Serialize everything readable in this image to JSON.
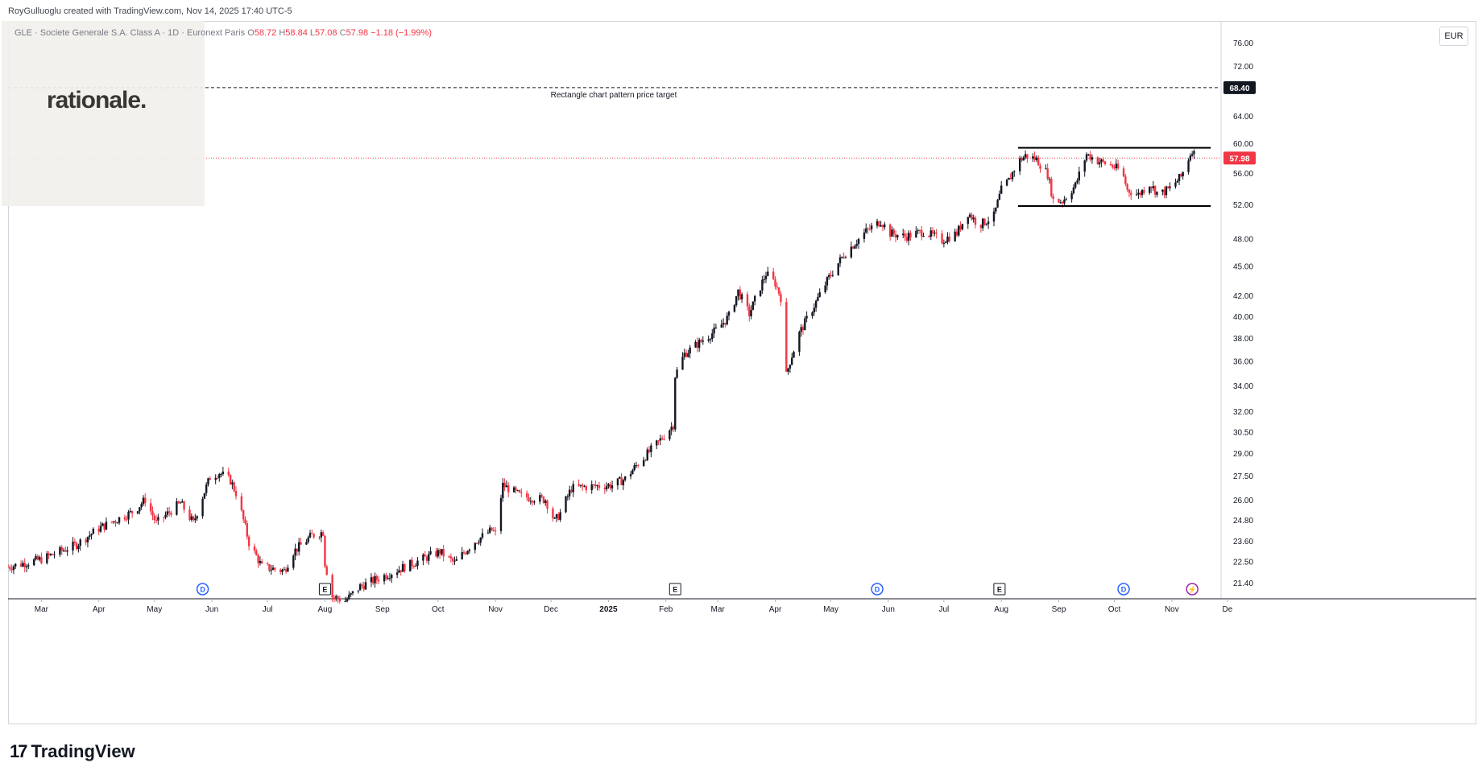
{
  "header": {
    "text": "RoyGulluoglu created with TradingView.com, Nov 14, 2025 17:40 UTC-5"
  },
  "logo": {
    "text": "rationale."
  },
  "symbol": {
    "description": "GLE · Societe Generale S.A. Class A · 1D · Euronext Paris",
    "o_label": "O",
    "o_value": "58.72",
    "h_label": "H",
    "h_value": "58.84",
    "l_label": "L",
    "l_value": "57.08",
    "c_label": "C",
    "c_value": "57.98",
    "change": "−1.18 (−1.99%)"
  },
  "currency": "EUR",
  "footer": {
    "brand_mark": "17",
    "brand_name": "TradingView"
  },
  "colors": {
    "up": "#131722",
    "down": "#f23645",
    "price_badge": "#f23645",
    "target_badge": "#131722"
  },
  "chart_data": {
    "type": "candlestick",
    "price_axis_ticks": [
      "76.00",
      "72.00",
      "64.00",
      "60.00",
      "56.00",
      "52.00",
      "48.00",
      "45.00",
      "42.00",
      "40.00",
      "38.00",
      "36.00",
      "34.00",
      "32.00",
      "30.50",
      "29.00",
      "27.50",
      "26.00",
      "24.80",
      "23.60",
      "22.50",
      "21.40"
    ],
    "scale": "log",
    "ylim": [
      20.6,
      80.0
    ],
    "time_axis_ticks": [
      {
        "label": "Mar",
        "date": "2024-03-01"
      },
      {
        "label": "Apr",
        "date": "2024-04-01"
      },
      {
        "label": "May",
        "date": "2024-05-01"
      },
      {
        "label": "Jun",
        "date": "2024-06-01"
      },
      {
        "label": "Jul",
        "date": "2024-07-01"
      },
      {
        "label": "Aug",
        "date": "2024-08-01"
      },
      {
        "label": "Sep",
        "date": "2024-09-01"
      },
      {
        "label": "Oct",
        "date": "2024-10-01"
      },
      {
        "label": "Nov",
        "date": "2024-11-01"
      },
      {
        "label": "Dec",
        "date": "2024-12-01"
      },
      {
        "label": "2025",
        "date": "2025-01-01"
      },
      {
        "label": "Feb",
        "date": "2025-02-01"
      },
      {
        "label": "Mar",
        "date": "2025-03-01"
      },
      {
        "label": "Apr",
        "date": "2025-04-01"
      },
      {
        "label": "May",
        "date": "2025-05-01"
      },
      {
        "label": "Jun",
        "date": "2025-06-01"
      },
      {
        "label": "Jul",
        "date": "2025-07-01"
      },
      {
        "label": "Aug",
        "date": "2025-08-01"
      },
      {
        "label": "Sep",
        "date": "2025-09-01"
      },
      {
        "label": "Oct",
        "date": "2025-10-01"
      },
      {
        "label": "Nov",
        "date": "2025-11-01"
      },
      {
        "label": "De",
        "date": "2025-12-01"
      }
    ],
    "close_path": [
      [
        "2024-02-12",
        22.2
      ],
      [
        "2024-03-01",
        22.6
      ],
      [
        "2024-03-20",
        23.4
      ],
      [
        "2024-04-01",
        24.3
      ],
      [
        "2024-04-20",
        25.3
      ],
      [
        "2024-04-26",
        26.0
      ],
      [
        "2024-05-02",
        24.6
      ],
      [
        "2024-05-15",
        25.8
      ],
      [
        "2024-05-22",
        24.6
      ],
      [
        "2024-05-27",
        26.2
      ],
      [
        "2024-05-31",
        27.4
      ],
      [
        "2024-06-05",
        27.7
      ],
      [
        "2024-06-11",
        27.2
      ],
      [
        "2024-06-14",
        26.4
      ],
      [
        "2024-06-17",
        25.2
      ],
      [
        "2024-06-21",
        23.5
      ],
      [
        "2024-06-28",
        22.2
      ],
      [
        "2024-07-10",
        22.0
      ],
      [
        "2024-07-15",
        23.0
      ],
      [
        "2024-07-25",
        23.9
      ],
      [
        "2024-07-31",
        24.1
      ],
      [
        "2024-08-01",
        22.4
      ],
      [
        "2024-08-05",
        20.7
      ],
      [
        "2024-08-12",
        20.5
      ],
      [
        "2024-08-20",
        21.2
      ],
      [
        "2024-09-01",
        21.7
      ],
      [
        "2024-09-20",
        22.5
      ],
      [
        "2024-10-02",
        23.0
      ],
      [
        "2024-10-10",
        22.4
      ],
      [
        "2024-10-20",
        23.5
      ],
      [
        "2024-10-30",
        24.2
      ],
      [
        "2024-11-01",
        24.0
      ],
      [
        "2024-11-05",
        26.9
      ],
      [
        "2024-11-15",
        26.2
      ],
      [
        "2024-11-28",
        26.0
      ],
      [
        "2024-12-03",
        24.7
      ],
      [
        "2024-12-06",
        25.2
      ],
      [
        "2024-12-12",
        26.7
      ],
      [
        "2024-12-20",
        26.8
      ],
      [
        "2025-01-03",
        26.9
      ],
      [
        "2025-01-10",
        27.3
      ],
      [
        "2025-01-17",
        28.3
      ],
      [
        "2025-01-27",
        29.6
      ],
      [
        "2025-02-05",
        31.0
      ],
      [
        "2025-02-06",
        34.8
      ],
      [
        "2025-02-11",
        36.6
      ],
      [
        "2025-02-20",
        37.7
      ],
      [
        "2025-03-01",
        38.8
      ],
      [
        "2025-03-07",
        40.0
      ],
      [
        "2025-03-12",
        42.4
      ],
      [
        "2025-03-18",
        40.2
      ],
      [
        "2025-03-27",
        44.2
      ],
      [
        "2025-04-01",
        43.2
      ],
      [
        "2025-04-04",
        41.8
      ],
      [
        "2025-04-07",
        34.8
      ],
      [
        "2025-04-09",
        36.0
      ],
      [
        "2025-04-14",
        38.4
      ],
      [
        "2025-04-22",
        41.0
      ],
      [
        "2025-04-30",
        43.8
      ],
      [
        "2025-05-08",
        46.2
      ],
      [
        "2025-05-20",
        48.8
      ],
      [
        "2025-05-28",
        50.0
      ],
      [
        "2025-06-02",
        48.6
      ],
      [
        "2025-06-10",
        48.2
      ],
      [
        "2025-06-20",
        48.8
      ],
      [
        "2025-06-30",
        47.8
      ],
      [
        "2025-07-08",
        48.6
      ],
      [
        "2025-07-14",
        51.0
      ],
      [
        "2025-07-20",
        49.5
      ],
      [
        "2025-07-28",
        50.6
      ],
      [
        "2025-08-01",
        53.8
      ],
      [
        "2025-08-05",
        55.0
      ],
      [
        "2025-08-10",
        57.5
      ],
      [
        "2025-08-14",
        58.3
      ],
      [
        "2025-08-20",
        57.8
      ],
      [
        "2025-08-26",
        55.8
      ],
      [
        "2025-08-29",
        52.5
      ],
      [
        "2025-09-03",
        52.4
      ],
      [
        "2025-09-10",
        54.4
      ],
      [
        "2025-09-16",
        58.5
      ],
      [
        "2025-09-22",
        57.6
      ],
      [
        "2025-09-29",
        57.0
      ],
      [
        "2025-10-05",
        56.2
      ],
      [
        "2025-10-08",
        53.8
      ],
      [
        "2025-10-14",
        53.2
      ],
      [
        "2025-10-20",
        54.6
      ],
      [
        "2025-10-25",
        53.2
      ],
      [
        "2025-10-31",
        54.0
      ],
      [
        "2025-11-06",
        55.5
      ],
      [
        "2025-11-12",
        59.16
      ],
      [
        "2025-11-14",
        57.98
      ]
    ],
    "last_price": {
      "value": 57.98,
      "label": "57.98"
    },
    "price_target": {
      "value": 68.4,
      "label": "68.40",
      "text": "Rectangle chart pattern price target"
    },
    "rectangle": {
      "top": 59.4,
      "bottom": 51.8,
      "start": "2025-08-10",
      "end": "2025-11-22"
    },
    "events": [
      {
        "type": "D",
        "date": "2024-05-27"
      },
      {
        "type": "E",
        "date": "2024-08-01"
      },
      {
        "type": "E",
        "date": "2025-02-06"
      },
      {
        "type": "D",
        "date": "2025-05-26"
      },
      {
        "type": "E",
        "date": "2025-07-31"
      },
      {
        "type": "D",
        "date": "2025-10-06"
      },
      {
        "type": "flash",
        "date": "2025-11-12"
      }
    ]
  }
}
